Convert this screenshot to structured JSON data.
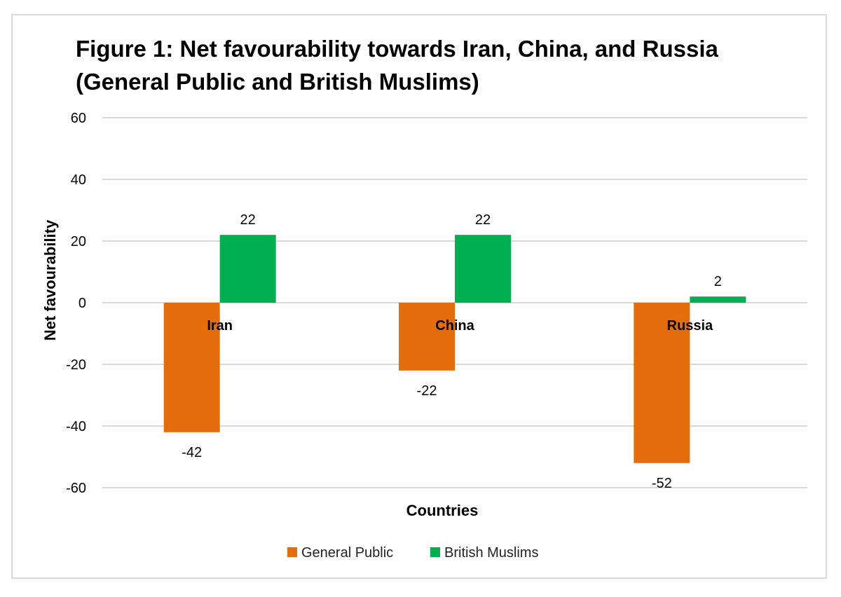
{
  "chart_data": {
    "type": "bar",
    "title": "Figure 1: Net favourability towards Iran, China, and Russia (General Public and British Muslims)",
    "xlabel": "Countries",
    "ylabel": "Net favourability",
    "categories": [
      "Iran",
      "China",
      "Russia"
    ],
    "series": [
      {
        "name": "General Public",
        "values": [
          -42,
          -22,
          -52
        ],
        "color": "#e46c0a"
      },
      {
        "name": "British Muslims",
        "values": [
          22,
          22,
          2
        ],
        "color": "#00b050"
      }
    ],
    "ylim": [
      -60,
      60
    ],
    "yticks": [
      60,
      40,
      20,
      0,
      -20,
      -40,
      -60
    ],
    "grid": true,
    "legend": "bottom"
  }
}
